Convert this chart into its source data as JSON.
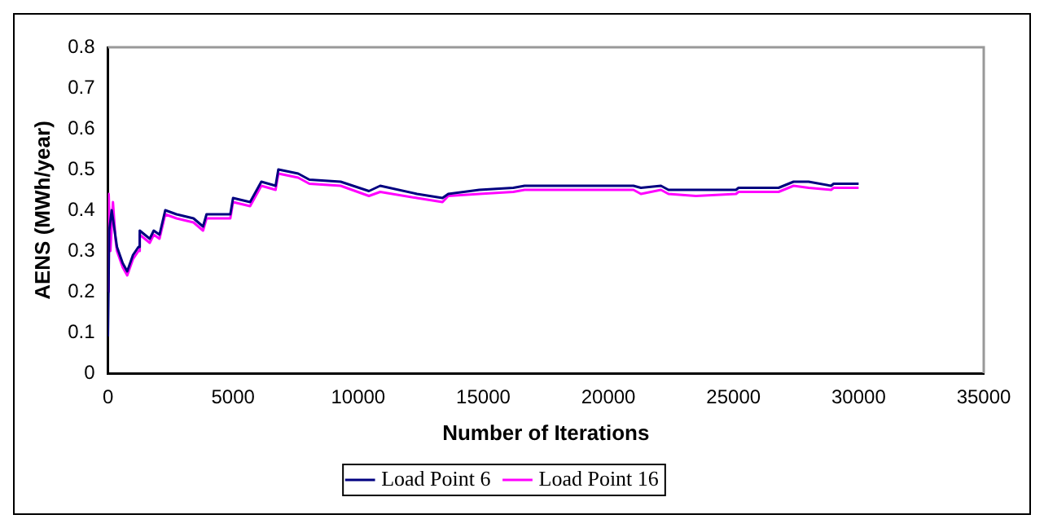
{
  "chart_data": {
    "type": "line",
    "xlabel": "Number of Iterations",
    "ylabel": "AENS (MWh/year)",
    "xlim": [
      0,
      35000
    ],
    "xticks": [
      0,
      5000,
      10000,
      15000,
      20000,
      25000,
      30000,
      35000
    ],
    "ylim": [
      0,
      0.8
    ],
    "yticks": [
      0,
      0.1,
      0.2,
      0.3,
      0.4,
      0.5,
      0.6,
      0.7,
      0.8
    ],
    "legend": "bottom",
    "marker": "none",
    "series": [
      {
        "name": "Load Point 6",
        "color": "#000080",
        "x": [
          0,
          50,
          150,
          360,
          590,
          770,
          1000,
          1220,
          1270,
          1670,
          1830,
          2060,
          2290,
          2740,
          3420,
          3800,
          3940,
          4890,
          5000,
          5680,
          6130,
          6700,
          6810,
          7600,
          8050,
          9300,
          10430,
          10880,
          12350,
          13370,
          13600,
          14840,
          16200,
          16650,
          18000,
          21000,
          21300,
          22100,
          22400,
          23500,
          25100,
          25200,
          26800,
          27400,
          28000,
          28900,
          29000,
          30000
        ],
        "values": [
          0.09,
          0.35,
          0.4,
          0.31,
          0.27,
          0.25,
          0.29,
          0.31,
          0.35,
          0.33,
          0.35,
          0.34,
          0.4,
          0.39,
          0.38,
          0.36,
          0.39,
          0.39,
          0.43,
          0.42,
          0.47,
          0.46,
          0.5,
          0.49,
          0.475,
          0.47,
          0.447,
          0.46,
          0.44,
          0.43,
          0.44,
          0.45,
          0.455,
          0.46,
          0.46,
          0.46,
          0.455,
          0.46,
          0.45,
          0.45,
          0.45,
          0.455,
          0.455,
          0.47,
          0.47,
          0.46,
          0.465,
          0.465
        ]
      },
      {
        "name": "Load Point 16",
        "color": "#ff00ff",
        "x": [
          0,
          30,
          100,
          200,
          300,
          360,
          590,
          770,
          1000,
          1220,
          1270,
          1670,
          1830,
          2060,
          2290,
          2740,
          3420,
          3800,
          3940,
          4890,
          5000,
          5680,
          6130,
          6700,
          6810,
          7600,
          8050,
          9300,
          10430,
          10880,
          12350,
          13370,
          13600,
          14840,
          16200,
          16650,
          18000,
          21000,
          21300,
          22100,
          22400,
          23500,
          25100,
          25200,
          26800,
          27400,
          28000,
          28900,
          29000,
          30000
        ],
        "values": [
          0.2,
          0.44,
          0.3,
          0.42,
          0.33,
          0.3,
          0.26,
          0.24,
          0.28,
          0.3,
          0.34,
          0.32,
          0.34,
          0.33,
          0.39,
          0.38,
          0.37,
          0.35,
          0.38,
          0.38,
          0.42,
          0.41,
          0.46,
          0.45,
          0.49,
          0.48,
          0.465,
          0.46,
          0.435,
          0.445,
          0.43,
          0.42,
          0.435,
          0.44,
          0.445,
          0.45,
          0.45,
          0.45,
          0.44,
          0.45,
          0.44,
          0.435,
          0.44,
          0.445,
          0.445,
          0.46,
          0.455,
          0.45,
          0.455,
          0.455
        ]
      }
    ]
  }
}
